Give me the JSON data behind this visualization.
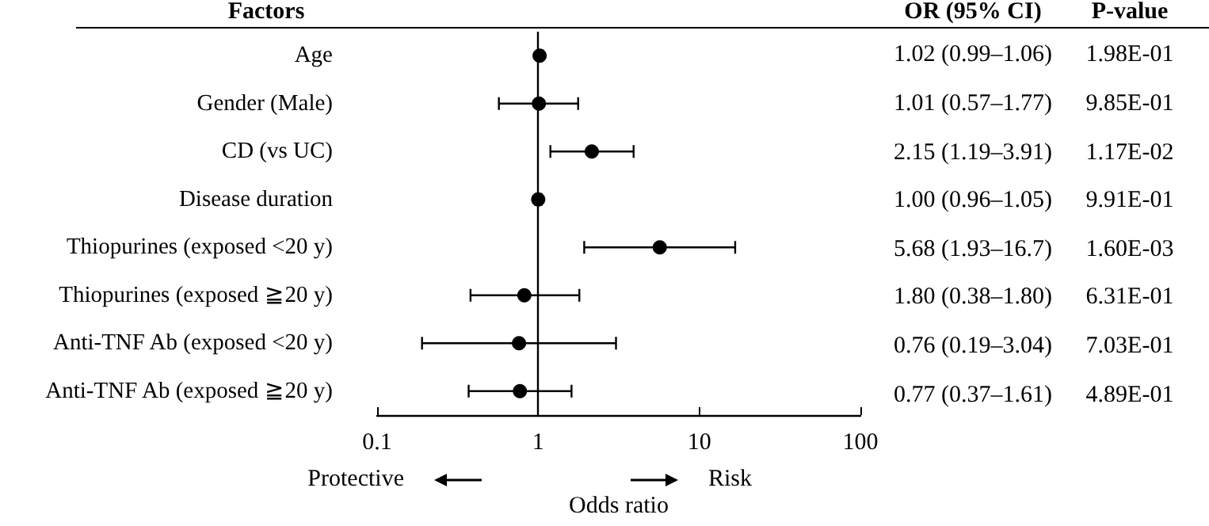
{
  "chart_data": {
    "type": "scatter",
    "orientation": "horizontal",
    "ylabel": "Factors",
    "xlabel": "Odds ratio",
    "categories": [
      "Age",
      "Gender (Male)",
      "CD (vs UC)",
      "Disease duration",
      "Thiopurines (exposed <20 y)",
      "Thiopurines (exposed ≧20 y)",
      "Anti-TNF Ab (exposed <20 y)",
      "Anti-TNF Ab (exposed ≧20 y)"
    ],
    "values": [
      1.02,
      1.01,
      2.15,
      1.0,
      5.68,
      0.82,
      0.76,
      0.77
    ],
    "errors": [
      [
        0.99,
        1.06
      ],
      [
        0.57,
        1.77
      ],
      [
        1.19,
        3.91
      ],
      [
        0.96,
        1.05
      ],
      [
        1.93,
        16.7
      ],
      [
        0.38,
        1.8
      ],
      [
        0.19,
        3.04
      ],
      [
        0.37,
        1.61
      ]
    ],
    "color": "#000000",
    "marker": "circle",
    "log": "x",
    "grid": false,
    "xlim": [
      0.1,
      100
    ],
    "xticks": [
      0.1,
      1,
      10,
      100
    ],
    "ref_lines": [
      {
        "axis": "x",
        "value": 1,
        "color": "#000000"
      }
    ],
    "annotations": [
      "OR (95% CI)",
      "1.02 (0.99–1.06)",
      "1.01 (0.57–1.77)",
      "2.15 (1.19–3.91)",
      "1.00 (0.96–1.05)",
      "5.68 (1.93–16.7)",
      "1.80 (0.38–1.80)",
      "0.76 (0.19–3.04)",
      "0.77 (0.37–1.61)",
      "P-value",
      "1.98E-01",
      "9.85E-01",
      "1.17E-02",
      "9.91E-01",
      "1.60E-03",
      "6.31E-01",
      "7.03E-01",
      "4.89E-01",
      "Protective",
      "Risk"
    ]
  }
}
